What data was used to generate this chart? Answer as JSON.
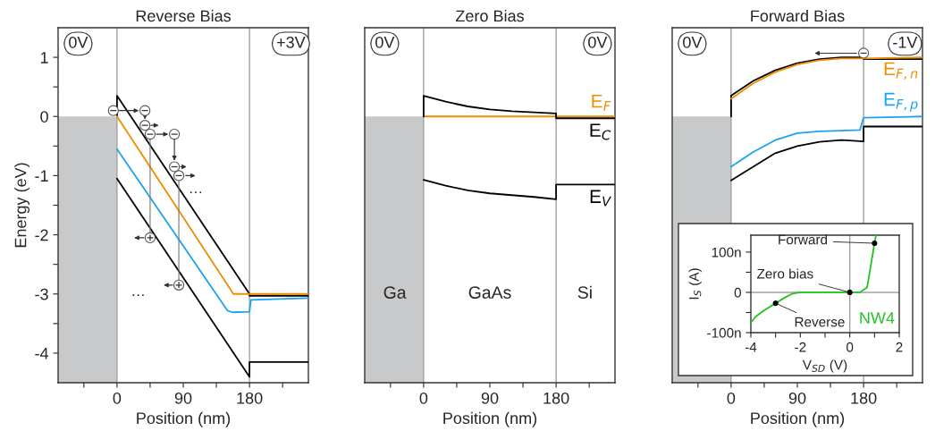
{
  "chart_data": [
    {
      "type": "line",
      "title": "Reverse Bias",
      "xlabel": "Position (nm)",
      "ylabel": "Energy (eV)",
      "xlim": [
        -80,
        260
      ],
      "ylim": [
        -4.5,
        1.5
      ],
      "xticks": [
        {
          "value": -45,
          "label": null
        },
        0,
        {
          "value": 45,
          "label": null
        },
        90,
        {
          "value": 135,
          "label": null
        },
        180,
        {
          "value": 225,
          "label": null
        }
      ],
      "yticks": [
        -4,
        {
          "value": -3.5,
          "label": null
        },
        -3,
        {
          "value": -2.5,
          "label": null
        },
        -2,
        {
          "value": -1.5,
          "label": null
        },
        -1,
        {
          "value": -0.5,
          "label": null
        },
        0,
        {
          "value": 0.5,
          "label": null
        },
        1
      ],
      "legend": false,
      "grid": false,
      "ref_lines": [
        {
          "axis": "x",
          "value": 0,
          "color": "#a0a0a0"
        },
        {
          "axis": "x",
          "value": 180,
          "color": "#a0a0a0"
        }
      ],
      "annotations": [
        "0V",
        "+3V",
        "…",
        "…"
      ],
      "series": [
        {
          "color": "#000000",
          "x": [
            0,
            0,
            180,
            180,
            260
          ],
          "values": [
            0,
            0.35,
            -3.0,
            -3.03,
            -3.03
          ]
        },
        {
          "color": "#f08c00",
          "x": [
            0,
            153,
            158,
            180,
            260
          ],
          "values": [
            0,
            -2.9,
            -3.0,
            -3.0,
            -3.0
          ]
        },
        {
          "color": "#1aa3ef",
          "x": [
            0,
            150,
            157,
            180,
            182,
            260
          ],
          "values": [
            -0.55,
            -3.28,
            -3.31,
            -3.3,
            -3.1,
            -3.07
          ]
        },
        {
          "color": "#000000",
          "x": [
            0,
            180,
            180,
            260
          ],
          "values": [
            -1.05,
            -4.4,
            -4.15,
            -4.15
          ]
        }
      ]
    },
    {
      "type": "line",
      "title": "Zero Bias",
      "xlabel": "Position (nm)",
      "xlim": [
        -80,
        260
      ],
      "ylim": [
        -4.5,
        1.5
      ],
      "tick_labels": "x",
      "xticks": [
        {
          "value": -45,
          "label": null
        },
        0,
        {
          "value": 45,
          "label": null
        },
        90,
        {
          "value": 135,
          "label": null
        },
        180,
        {
          "value": 225,
          "label": null
        }
      ],
      "legend": false,
      "grid": false,
      "ref_lines": [
        {
          "axis": "x",
          "value": 0,
          "color": "#a0a0a0"
        },
        {
          "axis": "x",
          "value": 180,
          "color": "#a0a0a0"
        }
      ],
      "annotations": [
        "0V",
        "0V",
        "Ga",
        "GaAs",
        "Si"
      ],
      "series": [
        {
          "name": "E$_{F}$",
          "color": "#f08c00",
          "x": [
            0,
            260
          ],
          "values": [
            0,
            0
          ]
        },
        {
          "name": "E$_{C}$",
          "color": "#000000",
          "x": [
            0,
            0,
            30,
            60,
            90,
            120,
            150,
            180,
            180,
            260
          ],
          "values": [
            0,
            0.35,
            0.25,
            0.17,
            0.12,
            0.09,
            0.07,
            0.05,
            -0.03,
            -0.03
          ]
        },
        {
          "name": "E$_{V}$",
          "color": "#000000",
          "x": [
            0,
            30,
            60,
            90,
            120,
            150,
            180,
            180,
            260
          ],
          "values": [
            -1.07,
            -1.17,
            -1.25,
            -1.3,
            -1.33,
            -1.36,
            -1.4,
            -1.15,
            -1.15
          ]
        }
      ]
    },
    {
      "type": "line",
      "title": "Forward Bias",
      "xlabel": "Position (nm)",
      "xlim": [
        -80,
        260
      ],
      "ylim": [
        -4.5,
        1.5
      ],
      "tick_labels": "x",
      "xticks": [
        {
          "value": -45,
          "label": null
        },
        0,
        {
          "value": 45,
          "label": null
        },
        90,
        {
          "value": 135,
          "label": null
        },
        180,
        {
          "value": 225,
          "label": null
        }
      ],
      "legend": false,
      "grid": false,
      "ref_lines": [
        {
          "axis": "x",
          "value": 0,
          "color": "#a0a0a0"
        },
        {
          "axis": "x",
          "value": 180,
          "color": "#a0a0a0"
        }
      ],
      "annotations": [
        "0V",
        "-1V"
      ],
      "series": [
        {
          "color": "#000000",
          "x": [
            0,
            0,
            30,
            60,
            90,
            120,
            150,
            180,
            180,
            260
          ],
          "values": [
            0,
            0.35,
            0.6,
            0.78,
            0.9,
            0.97,
            1.0,
            1.0,
            0.97,
            0.97
          ]
        },
        {
          "name": "E$_{F,n}$",
          "color": "#f08c00",
          "x": [
            0,
            30,
            60,
            90,
            120,
            150,
            180,
            260
          ],
          "values": [
            0.3,
            0.56,
            0.75,
            0.88,
            0.95,
            0.98,
            0.98,
            1.0
          ]
        },
        {
          "name": "E$_{F,p}$",
          "color": "#1aa3ef",
          "x": [
            0,
            30,
            60,
            90,
            120,
            150,
            175,
            180,
            260
          ],
          "values": [
            -0.85,
            -0.6,
            -0.4,
            -0.28,
            -0.25,
            -0.24,
            -0.23,
            -0.02,
            0
          ]
        },
        {
          "color": "#000000",
          "x": [
            0,
            30,
            60,
            90,
            120,
            150,
            180,
            180,
            260
          ],
          "values": [
            -1.08,
            -0.85,
            -0.62,
            -0.5,
            -0.43,
            -0.4,
            -0.42,
            -0.17,
            -0.17
          ]
        }
      ]
    },
    {
      "type": "line",
      "xlabel": "V$_{SD}$ (V)",
      "ylabel": "I$_{S}$ (A)",
      "xlim": [
        -4,
        2
      ],
      "ylim": [
        -100,
        142
      ],
      "xticks": [
        -4,
        {
          "value": -3,
          "label": null
        },
        -2,
        {
          "value": -1,
          "label": null
        },
        0,
        {
          "value": 1,
          "label": null
        },
        2
      ],
      "yticks": [
        {
          "value": -100,
          "label": "-100n"
        },
        {
          "value": -50,
          "label": null
        },
        0,
        {
          "value": 50,
          "label": null
        },
        {
          "value": 100,
          "label": "100n"
        }
      ],
      "legend": false,
      "grid": false,
      "ref_lines": [
        {
          "axis": "x",
          "value": 0,
          "color": "#a0a0a0"
        },
        {
          "axis": "y",
          "value": 0,
          "color": "#a0a0a0"
        }
      ],
      "annotations": [
        {
          "text": "Forward",
          "x": 1.0,
          "y": 122
        },
        {
          "text": "Zero bias",
          "x": 0,
          "y": 0
        },
        {
          "text": "Reverse",
          "x": -3,
          "y": -27
        }
      ],
      "series": [
        {
          "name": "NW4",
          "color": "#22c422",
          "x": [
            -4,
            -3.8,
            -3.5,
            -3,
            -2.6,
            -2.3,
            -2,
            0,
            0.4,
            0.7,
            1.0,
            1.06
          ],
          "values": [
            -75,
            -60,
            -46,
            -27,
            -12,
            -3,
            0,
            0,
            0,
            12,
            122,
            142
          ]
        },
        {
          "type": "scatter",
          "color": "#000000",
          "marker": "circle",
          "x": [
            1.0,
            0,
            -3
          ],
          "values": [
            122,
            0,
            -27
          ]
        }
      ]
    }
  ]
}
